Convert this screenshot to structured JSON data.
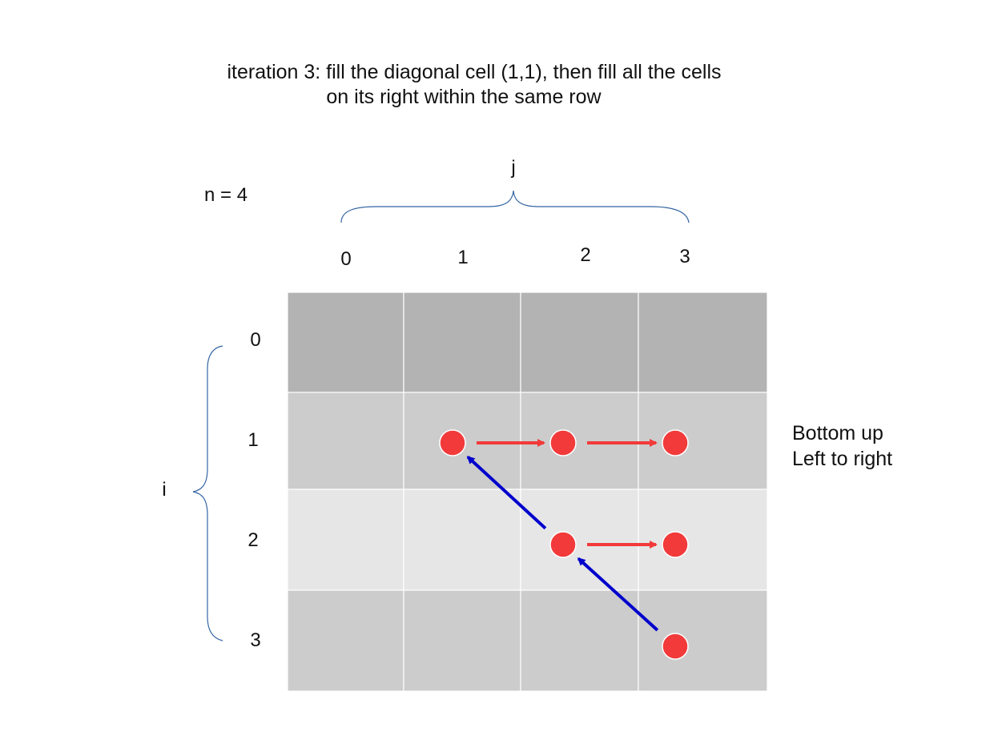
{
  "title": {
    "line1": "iteration 3: fill the diagonal cell (1,1), then fill all the cells",
    "line2": "on its right within the same row"
  },
  "n_label": "n = 4",
  "col_axis": {
    "label": "j",
    "ticks": [
      "0",
      "1",
      "2",
      "3"
    ]
  },
  "row_axis": {
    "label": "i",
    "ticks": [
      "0",
      "1",
      "2",
      "3"
    ]
  },
  "note": {
    "line1": "Bottom up",
    "line2": "Left to right"
  },
  "grid": {
    "rows": 4,
    "cols": 4,
    "row_fill": [
      "#b3b3b3",
      "#cccccc",
      "#e6e6e6",
      "#cccccc"
    ]
  },
  "cells_filled": [
    {
      "i": 1,
      "j": 1
    },
    {
      "i": 1,
      "j": 2
    },
    {
      "i": 1,
      "j": 3
    },
    {
      "i": 2,
      "j": 2
    },
    {
      "i": 2,
      "j": 3
    },
    {
      "i": 3,
      "j": 3
    }
  ],
  "arrows": [
    {
      "kind": "row-fill",
      "from": {
        "i": 1,
        "j": 1
      },
      "to": {
        "i": 1,
        "j": 2
      },
      "color": "#f23a3a"
    },
    {
      "kind": "row-fill",
      "from": {
        "i": 1,
        "j": 2
      },
      "to": {
        "i": 1,
        "j": 3
      },
      "color": "#f23a3a"
    },
    {
      "kind": "row-fill",
      "from": {
        "i": 2,
        "j": 2
      },
      "to": {
        "i": 2,
        "j": 3
      },
      "color": "#f23a3a"
    },
    {
      "kind": "diagonal-step",
      "from": {
        "i": 3,
        "j": 3
      },
      "to": {
        "i": 2,
        "j": 2
      },
      "color": "#0000cc"
    },
    {
      "kind": "diagonal-step",
      "from": {
        "i": 2,
        "j": 2
      },
      "to": {
        "i": 1,
        "j": 1
      },
      "color": "#0000cc"
    }
  ],
  "colors": {
    "dot": "#f23a3a",
    "row_arrow": "#f23a3a",
    "diag_arrow": "#0000cc",
    "brace": "#3465a4"
  }
}
